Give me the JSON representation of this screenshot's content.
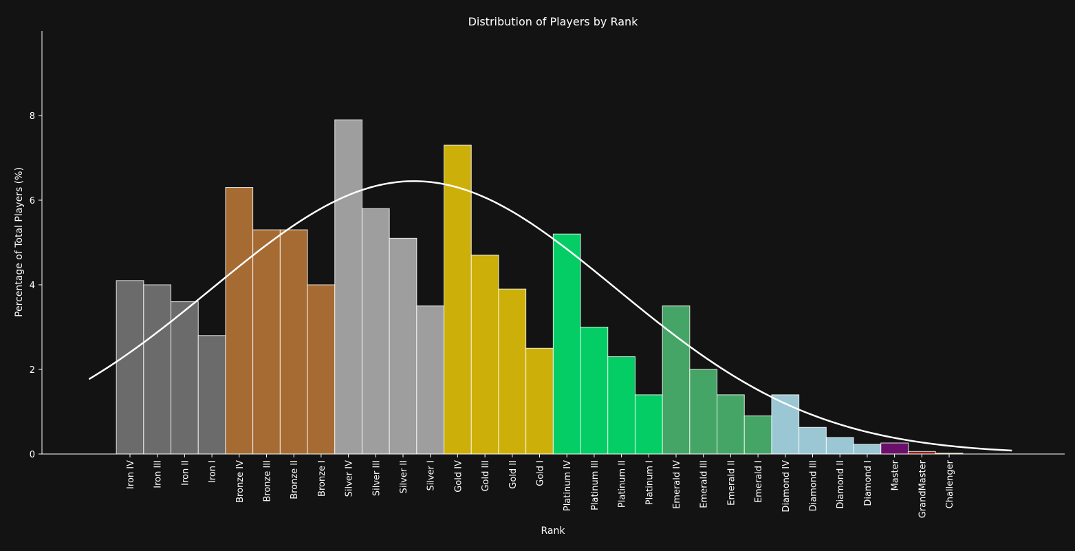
{
  "chart_data": {
    "type": "bar",
    "title": "Distribution of Players by Rank",
    "xlabel": "Rank",
    "ylabel": "Percentage of Total Players (%)",
    "ylim": [
      0,
      10
    ],
    "yticks": [
      0,
      2,
      4,
      6,
      8
    ],
    "grid": false,
    "legend": "none",
    "categories": [
      "Iron IV",
      "Iron III",
      "Iron II",
      "Iron I",
      "Bronze IV",
      "Bronze III",
      "Bronze II",
      "Bronze I",
      "Silver IV",
      "Silver III",
      "Silver II",
      "Silver I",
      "Gold IV",
      "Gold III",
      "Gold II",
      "Gold I",
      "Platinum IV",
      "Platinum III",
      "Platinum II",
      "Platinum I",
      "Emerald IV",
      "Emerald III",
      "Emerald II",
      "Emerald I",
      "Diamond IV",
      "Diamond III",
      "Diamond II",
      "Diamond I",
      "Master",
      "GrandMaster",
      "Challenger"
    ],
    "values": [
      4.1,
      4.0,
      3.6,
      2.8,
      6.3,
      5.3,
      5.3,
      4.0,
      7.9,
      5.8,
      5.1,
      3.5,
      7.3,
      4.7,
      3.9,
      2.5,
      5.2,
      3.0,
      2.3,
      1.4,
      3.5,
      2.0,
      1.4,
      0.9,
      1.4,
      0.63,
      0.39,
      0.23,
      0.26,
      0.06,
      0.02
    ],
    "bar_colors": [
      "#6b6b6b",
      "#6b6b6b",
      "#6b6b6b",
      "#6b6b6b",
      "#a66b33",
      "#a66b33",
      "#a66b33",
      "#a66b33",
      "#9e9e9e",
      "#9e9e9e",
      "#9e9e9e",
      "#9e9e9e",
      "#cdaf0a",
      "#cdaf0a",
      "#cdaf0a",
      "#cdaf0a",
      "#03cd64",
      "#03cd64",
      "#03cd64",
      "#03cd64",
      "#45a566",
      "#45a566",
      "#45a566",
      "#45a566",
      "#9bc6d3",
      "#9bc6d3",
      "#9bc6d3",
      "#9bc6d3",
      "#6a0f6a",
      "#8b1f1f",
      "#c8a84b"
    ],
    "edge_color": "#ffffff",
    "curve": {
      "type": "normal-fit",
      "color": "#ffffff",
      "x_start": -1.5,
      "x_end": 32.3,
      "mean": 10.4,
      "sd": 7.4,
      "peak": 6.45
    }
  }
}
